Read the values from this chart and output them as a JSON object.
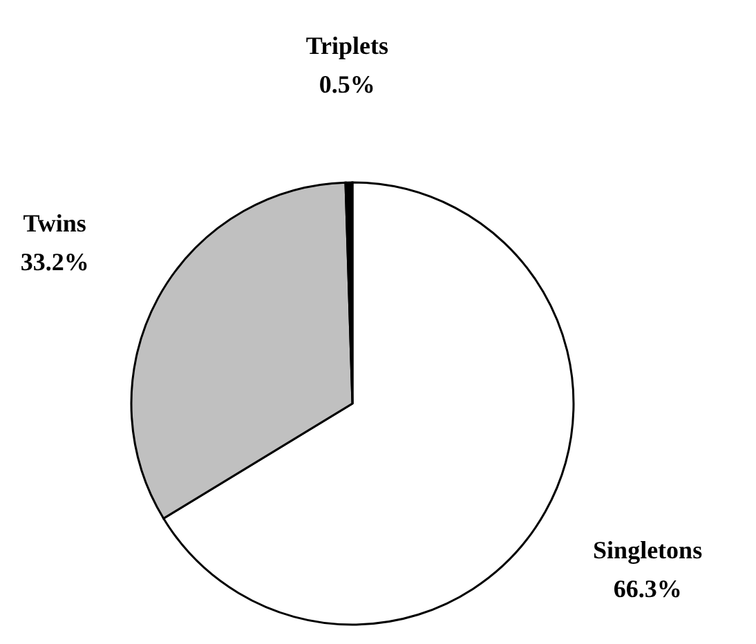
{
  "chart_data": {
    "type": "pie",
    "categories": [
      "Singletons",
      "Twins",
      "Triplets"
    ],
    "values": [
      66.3,
      33.2,
      0.5
    ],
    "colors": [
      "#ffffff",
      "#c0c0c0",
      "#000000"
    ],
    "value_labels": [
      "66.3%",
      "33.2%",
      "0.5%"
    ]
  }
}
